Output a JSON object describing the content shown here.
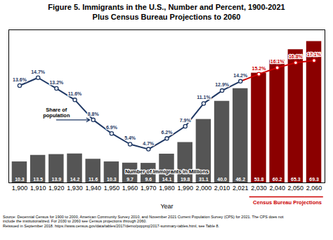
{
  "chart_data": {
    "type": "bar",
    "title": "Figure 5. Immigrants in the U.S., Number and Percent, 1900-2021\nPlus Census Bureau Projections to 2060",
    "xlabel": "Year",
    "categories": [
      1900,
      1910,
      1920,
      1930,
      1940,
      1950,
      1960,
      1970,
      1980,
      1990,
      2000,
      2010,
      2021,
      2030,
      2040,
      2050,
      2060
    ],
    "ylim": [
      0,
      75
    ],
    "y2lim": [
      0,
      21.4
    ],
    "tick_labels": "x",
    "data_labels": true,
    "series": [
      {
        "name": "Number of Immigrants in Millions",
        "type": "bar",
        "values": [
          10.3,
          13.5,
          13.9,
          14.2,
          11.6,
          10.3,
          9.7,
          9.6,
          14.1,
          19.8,
          31.1,
          40.0,
          46.2,
          53.8,
          60.2,
          65.3,
          69.3
        ],
        "value_labels": [
          "10.3",
          "13.5",
          "13.9",
          "14.2",
          "11.6",
          "10.3",
          "9.7",
          "9.6",
          "14.1",
          "19.8",
          "31.1",
          "40.0",
          "46.2",
          "53.8",
          "60.2",
          "65.3",
          "69.3"
        ],
        "colors": [
          "#555555",
          "#555555",
          "#555555",
          "#555555",
          "#555555",
          "#555555",
          "#555555",
          "#555555",
          "#555555",
          "#555555",
          "#555555",
          "#555555",
          "#555555",
          "#8B0000",
          "#8B0000",
          "#8B0000",
          "#8B0000"
        ]
      },
      {
        "name": "Share of\npopulation",
        "type": "line",
        "axis": "y2",
        "marker": "circle",
        "values": [
          13.6,
          14.7,
          13.2,
          11.6,
          8.8,
          6.9,
          5.4,
          4.7,
          6.2,
          7.9,
          11.1,
          12.9,
          14.2,
          15.2,
          16.1,
          16.8,
          17.1
        ],
        "value_labels": [
          "13.6%",
          "14.7%",
          "13.2%",
          "11.6%",
          "8.8%",
          "6.9%",
          "5.4%",
          "4.7%",
          "6.2%",
          "7.9%",
          "11.1%",
          "12.9%",
          "14.2%",
          "15.2%",
          "16.1%",
          "16.8%",
          "17.1%"
        ],
        "colors": [
          "#1f3864",
          "#1f3864",
          "#1f3864",
          "#1f3864",
          "#1f3864",
          "#1f3864",
          "#1f3864",
          "#1f3864",
          "#1f3864",
          "#1f3864",
          "#1f3864",
          "#1f3864",
          "#1f3864",
          "#cc0000",
          "#cc0000",
          "#cc0000",
          "#cc0000"
        ]
      }
    ],
    "annotations": [
      {
        "text": "Census Bureau Projections",
        "color": "#cc0000"
      },
      {
        "text": "Source: Decennial Census for 1900 to 2000, American Community Survey 2010, and November 2021 Current Population Survey (CPS) for 2021. The CPS does not\ninclude the institutionalized. For 2030 to 2060 see Census projections through 2060.\nReissued in September 2018. https://www.census.gov/data/tables/2017/demo/popproj/2017-summary-tables.html, see Table 8."
      }
    ]
  }
}
